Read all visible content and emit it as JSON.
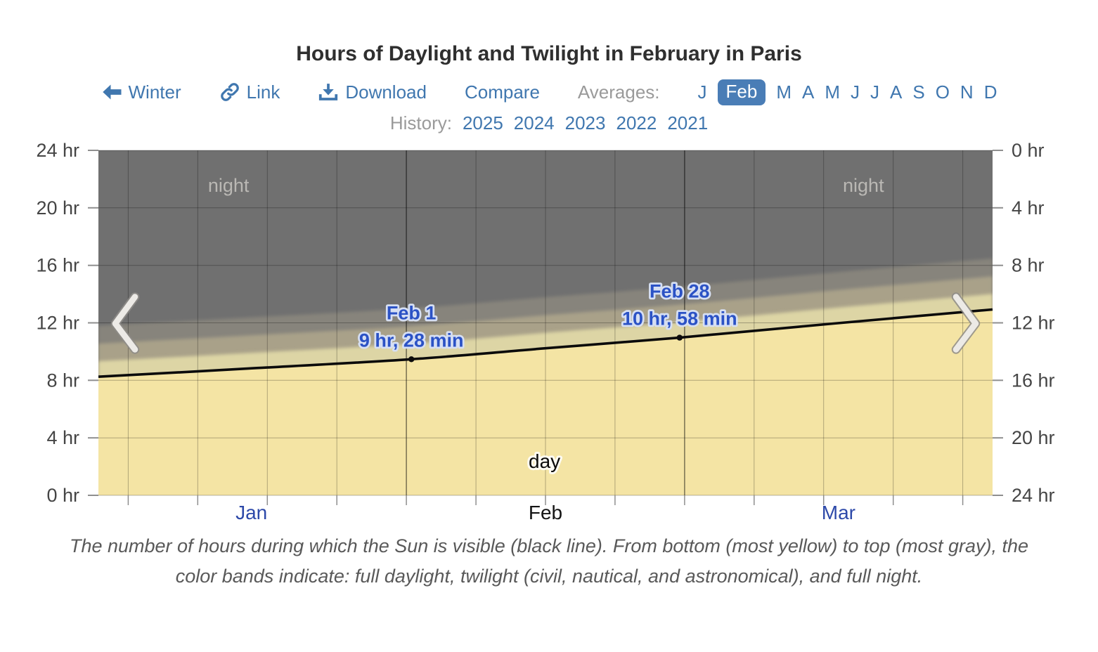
{
  "header": {
    "title": "Hours of Daylight and Twilight in February in Paris"
  },
  "toolbar": {
    "back_label": "Winter",
    "link_label": "Link",
    "download_label": "Download",
    "compare_label": "Compare",
    "averages_label": "Averages:",
    "months": [
      {
        "label": "J",
        "active": false
      },
      {
        "label": "Feb",
        "active": true
      },
      {
        "label": "M",
        "active": false
      },
      {
        "label": "A",
        "active": false
      },
      {
        "label": "M",
        "active": false
      },
      {
        "label": "J",
        "active": false
      },
      {
        "label": "J",
        "active": false
      },
      {
        "label": "A",
        "active": false
      },
      {
        "label": "S",
        "active": false
      },
      {
        "label": "O",
        "active": false
      },
      {
        "label": "N",
        "active": false
      },
      {
        "label": "D",
        "active": false
      }
    ]
  },
  "history": {
    "label": "History:",
    "years": [
      "2025",
      "2024",
      "2023",
      "2022",
      "2021"
    ]
  },
  "chart_data": {
    "type": "area",
    "location": "Paris",
    "month_shown": "February",
    "x_axis": {
      "start": "Jan 1",
      "end": "Mar 31",
      "days_total": 90,
      "month_labels": [
        {
          "label": "Jan",
          "day": 15.4,
          "color": "#2d49a9",
          "link": true
        },
        {
          "label": "Feb",
          "day": 45.0,
          "color": "#141414",
          "link": false
        },
        {
          "label": "Mar",
          "day": 74.5,
          "color": "#2d49a9",
          "link": true
        }
      ],
      "minor_gridline_days": [
        3,
        10,
        17,
        24,
        38,
        45,
        52,
        66,
        73,
        80,
        87
      ],
      "major_gridline_days": [
        31,
        59
      ]
    },
    "y_axis": {
      "unit": "hr",
      "min": 0,
      "max": 24,
      "tick_step": 4,
      "left_ticks": [
        "24 hr",
        "20 hr",
        "16 hr",
        "12 hr",
        "8 hr",
        "4 hr",
        "0 hr"
      ],
      "right_ticks": [
        "0 hr",
        "4 hr",
        "8 hr",
        "12 hr",
        "16 hr",
        "20 hr",
        "24 hr"
      ]
    },
    "series": {
      "name": "Hours during which the Sun is visible",
      "points": [
        {
          "day": 0,
          "hours": 8.25
        },
        {
          "day": 15,
          "hours": 8.82
        },
        {
          "day": 31.5,
          "hours": 9.47
        },
        {
          "day": 45,
          "hours": 10.23
        },
        {
          "day": 58.5,
          "hours": 10.97
        },
        {
          "day": 74,
          "hours": 11.95
        },
        {
          "day": 90,
          "hours": 12.93
        }
      ]
    },
    "bands": {
      "civil_twilight_cum_hours": 1.08,
      "nautical_twilight_cum_hours": 2.3,
      "astronomical_twilight_cum_hours": 3.55
    },
    "annotations": [
      {
        "date": "Feb 1",
        "value": "9 hr, 28 min",
        "day": 31.5,
        "hours": 9.467
      },
      {
        "date": "Feb 28",
        "value": "10 hr, 58 min",
        "day": 58.5,
        "hours": 10.967
      }
    ],
    "region_labels": [
      {
        "text": "night",
        "day": 13.1,
        "hours": 21.55
      },
      {
        "text": "night",
        "day": 77.0,
        "hours": 21.55
      },
      {
        "text": "day",
        "day": 44.9,
        "hours": 2.35
      }
    ],
    "colors": {
      "day": "#f4e4a4",
      "civil": "#ddd5a5",
      "nautical": "#a9a189",
      "astro": "#87847b",
      "night": "#707070",
      "sun_line": "#0b0b0b",
      "annotation": "#2b52c5",
      "annotation_halo": "#d6dff3",
      "night_label": "#bab8b4",
      "day_label": "#0a0a0a",
      "grid_minor": "rgba(0,0,0,0.28)",
      "grid_major": "rgba(0,0,0,0.55)",
      "tick": "#8f8f8f",
      "axis_label": "#454545"
    }
  },
  "caption": "The number of hours during which the Sun is visible (black line). From bottom (most yellow) to top (most gray), the color bands indicate: full daylight, twilight (civil, nautical, and astronomical), and full night."
}
